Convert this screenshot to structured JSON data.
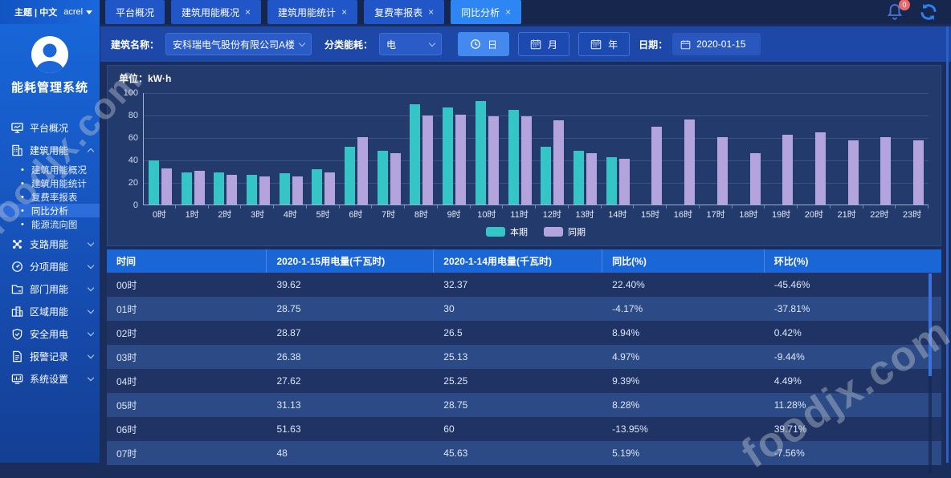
{
  "topbar": {
    "theme_label": "主题 | 中文",
    "user": "acrel",
    "notification_count": "0",
    "tabs": [
      {
        "label": "平台概况",
        "closable": false,
        "active": false
      },
      {
        "label": "建筑用能概况",
        "closable": true,
        "active": false
      },
      {
        "label": "建筑用能统计",
        "closable": true,
        "active": false
      },
      {
        "label": "复费率报表",
        "closable": true,
        "active": false
      },
      {
        "label": "同比分析",
        "closable": true,
        "active": true
      }
    ]
  },
  "sidebar": {
    "app_title": "能耗管理系统",
    "items": [
      {
        "label": "平台概况",
        "icon": "monitor-icon",
        "collapsible": false
      },
      {
        "label": "建筑用能",
        "icon": "building-icon",
        "collapsible": true,
        "expanded": true,
        "children": [
          {
            "label": "建筑用能概况",
            "active": false
          },
          {
            "label": "建筑用能统计",
            "active": false
          },
          {
            "label": "复费率报表",
            "active": false
          },
          {
            "label": "同比分析",
            "active": true
          },
          {
            "label": "能源流向图",
            "active": false
          }
        ]
      },
      {
        "label": "支路用能",
        "icon": "branch-icon",
        "collapsible": true
      },
      {
        "label": "分项用能",
        "icon": "gauge-icon",
        "collapsible": true
      },
      {
        "label": "部门用能",
        "icon": "folder-icon",
        "collapsible": true
      },
      {
        "label": "区域用能",
        "icon": "region-icon",
        "collapsible": true
      },
      {
        "label": "安全用电",
        "icon": "shield-icon",
        "collapsible": true
      },
      {
        "label": "报警记录",
        "icon": "report-icon",
        "collapsible": true
      },
      {
        "label": "系统设置",
        "icon": "settings-icon",
        "collapsible": true
      }
    ]
  },
  "filters": {
    "building_label": "建筑名称：",
    "building_value": "安科瑞电气股份有限公司A楼",
    "energy_label": "分类能耗：",
    "energy_value": "电",
    "period_buttons": [
      {
        "label": "日",
        "icon": "clock-icon",
        "active": true
      },
      {
        "label": "月",
        "icon": "calendar-icon",
        "active": false
      },
      {
        "label": "年",
        "icon": "calendar-icon",
        "active": false
      }
    ],
    "date_label": "日期：",
    "date_value": "2020-01-15"
  },
  "chart": {
    "unit_label": "单位：kW·h"
  },
  "chart_data": {
    "type": "bar",
    "title": "单位：kW·h",
    "categories": [
      "0时",
      "1时",
      "2时",
      "3时",
      "4时",
      "5时",
      "6时",
      "7时",
      "8时",
      "9时",
      "10时",
      "11时",
      "12时",
      "13时",
      "14时",
      "15时",
      "16时",
      "17时",
      "18时",
      "19时",
      "20时",
      "21时",
      "22时",
      "23时"
    ],
    "series": [
      {
        "name": "本期",
        "color": "#35c5c7",
        "values": [
          39.62,
          28.75,
          28.87,
          26.38,
          27.62,
          31.13,
          51.63,
          48,
          89,
          86.5,
          92.5,
          84.5,
          51.5,
          48,
          42,
          null,
          null,
          null,
          null,
          null,
          null,
          null,
          null,
          null
        ]
      },
      {
        "name": "同期",
        "color": "#b4a4dd",
        "values": [
          32.37,
          30,
          26.5,
          25.13,
          25.25,
          28.75,
          60,
          45.63,
          79.5,
          80,
          78.5,
          78.5,
          75,
          45.5,
          40.5,
          69,
          76,
          60,
          45.5,
          62,
          64.5,
          57.5,
          60,
          57.5
        ]
      }
    ],
    "ylim": [
      0,
      100
    ],
    "yticks": [
      0,
      20,
      40,
      60,
      80,
      100
    ],
    "grid": true,
    "legend_position": "bottom"
  },
  "table": {
    "headers": [
      "时间",
      "2020-1-15用电量(千瓦时)",
      "2020-1-14用电量(千瓦时)",
      "同比(%)",
      "环比(%)"
    ],
    "rows": [
      [
        "00时",
        "39.62",
        "32.37",
        "22.40%",
        "-45.46%"
      ],
      [
        "01时",
        "28.75",
        "30",
        "-4.17%",
        "-37.81%"
      ],
      [
        "02时",
        "28.87",
        "26.5",
        "8.94%",
        "0.42%"
      ],
      [
        "03时",
        "26.38",
        "25.13",
        "4.97%",
        "-9.44%"
      ],
      [
        "04时",
        "27.62",
        "25.25",
        "9.39%",
        "4.49%"
      ],
      [
        "05时",
        "31.13",
        "28.75",
        "8.28%",
        "11.28%"
      ],
      [
        "06时",
        "51.63",
        "60",
        "-13.95%",
        "39.71%"
      ],
      [
        "07时",
        "48",
        "45.63",
        "5.19%",
        "-7.56%"
      ]
    ]
  },
  "watermark": "foodjx.com"
}
